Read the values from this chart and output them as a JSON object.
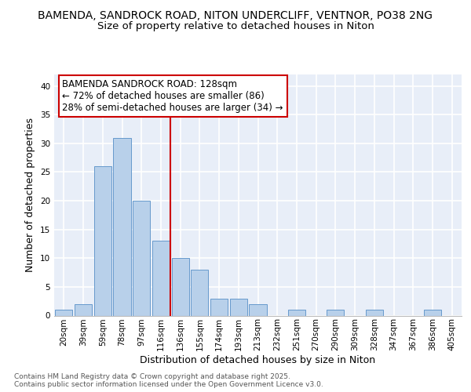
{
  "title_line1": "BAMENDA, SANDROCK ROAD, NITON UNDERCLIFF, VENTNOR, PO38 2NG",
  "title_line2": "Size of property relative to detached houses in Niton",
  "xlabel": "Distribution of detached houses by size in Niton",
  "ylabel": "Number of detached properties",
  "bar_labels": [
    "20sqm",
    "39sqm",
    "59sqm",
    "78sqm",
    "97sqm",
    "116sqm",
    "136sqm",
    "155sqm",
    "174sqm",
    "193sqm",
    "213sqm",
    "232sqm",
    "251sqm",
    "270sqm",
    "290sqm",
    "309sqm",
    "328sqm",
    "347sqm",
    "367sqm",
    "386sqm",
    "405sqm"
  ],
  "bar_values": [
    1,
    2,
    26,
    31,
    20,
    13,
    10,
    8,
    3,
    3,
    2,
    0,
    1,
    0,
    1,
    0,
    1,
    0,
    0,
    1,
    0
  ],
  "bar_color": "#b8d0ea",
  "bar_edge_color": "#6699cc",
  "background_color": "#e8eef8",
  "grid_color": "#ffffff",
  "vline_x": 5.5,
  "vline_color": "#cc0000",
  "annotation_text": "BAMENDA SANDROCK ROAD: 128sqm\n← 72% of detached houses are smaller (86)\n28% of semi-detached houses are larger (34) →",
  "annotation_box_color": "#ffffff",
  "annotation_box_edge": "#cc0000",
  "ylim": [
    0,
    42
  ],
  "yticks": [
    0,
    5,
    10,
    15,
    20,
    25,
    30,
    35,
    40
  ],
  "footer_text": "Contains HM Land Registry data © Crown copyright and database right 2025.\nContains public sector information licensed under the Open Government Licence v3.0.",
  "title_fontsize": 10,
  "subtitle_fontsize": 9.5,
  "axis_label_fontsize": 9,
  "tick_fontsize": 7.5,
  "annotation_fontsize": 8.5
}
